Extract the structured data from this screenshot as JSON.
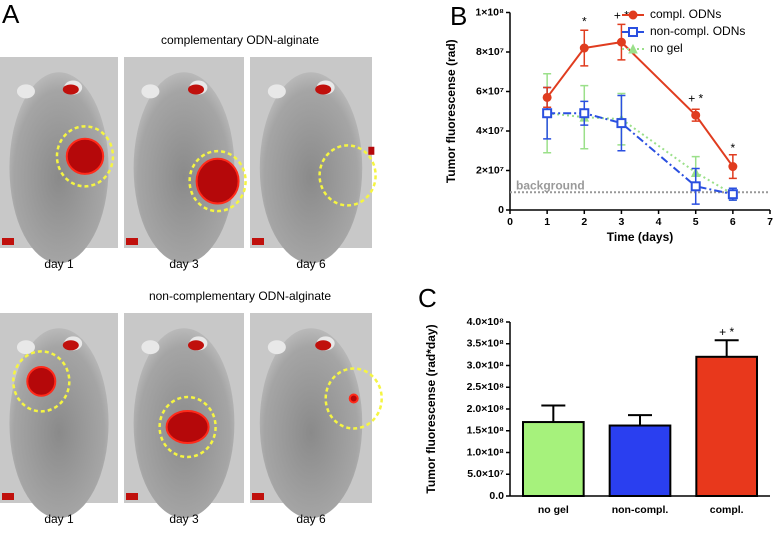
{
  "panel_a": {
    "letter": "A",
    "groups": [
      {
        "title": "complementary ODN-alginate",
        "days": [
          "day 1",
          "day 3",
          "day 6"
        ]
      },
      {
        "title": "non-complementary ODN-alginate",
        "days": [
          "day 1",
          "day 3",
          "day 6"
        ]
      }
    ]
  },
  "chart_data": [
    {
      "type": "line",
      "panel_label": "B",
      "x_label": "Time (days)",
      "y_label": "Tumor fluorescense (rad)",
      "xlim": [
        0,
        7
      ],
      "xticks": [
        0,
        1,
        2,
        3,
        4,
        5,
        6,
        7
      ],
      "ylim": [
        0,
        100000000
      ],
      "yticks": [
        0,
        {
          "value": 20000000,
          "label": "2×10⁷"
        },
        {
          "value": 40000000,
          "label": "4×10⁷"
        },
        {
          "value": 60000000,
          "label": "6×10⁷"
        },
        {
          "value": 80000000,
          "label": "8×10⁷"
        },
        {
          "value": 100000000,
          "label": "1×10⁸"
        }
      ],
      "legend": "upper right",
      "background": {
        "label": "background",
        "value": 9000000
      },
      "series": [
        {
          "name": "compl. ODNs",
          "color": "#e03c1f",
          "marker": "circle",
          "dash": "solid",
          "x": [
            1,
            2,
            3,
            5,
            6
          ],
          "values": [
            57000000,
            82000000,
            85000000,
            48000000,
            22000000
          ],
          "errors": [
            5000000,
            9000000,
            9000000,
            3000000,
            6000000
          ]
        },
        {
          "name": "non-compl. ODNs",
          "color": "#2a4fe0",
          "marker": "square",
          "dash": "dashdot",
          "x": [
            1,
            2,
            3,
            5,
            6
          ],
          "values": [
            49000000,
            49000000,
            44000000,
            12000000,
            8000000
          ],
          "errors": [
            13000000,
            6000000,
            14000000,
            9000000,
            3000000
          ]
        },
        {
          "name": "no gel",
          "color": "#9be08a",
          "marker": "triangle",
          "dash": "dotted",
          "x": [
            1,
            2,
            3,
            5,
            6
          ],
          "values": [
            49000000,
            47000000,
            46000000,
            19000000,
            8000000
          ],
          "errors": [
            20000000,
            16000000,
            13000000,
            8000000,
            3000000
          ]
        }
      ],
      "annotations": [
        {
          "text": "*",
          "x": 2,
          "y": 95000000
        },
        {
          "text": "+ *",
          "x": 3,
          "y": 98000000
        },
        {
          "text": "+ *",
          "x": 5,
          "y": 56000000
        },
        {
          "text": "*",
          "x": 6,
          "y": 31000000
        }
      ]
    },
    {
      "type": "bar",
      "panel_label": "C",
      "y_label": "Tumor fluorescense (rad*day)",
      "categories": [
        "no gel",
        "non-compl.",
        "compl."
      ],
      "values": [
        170000000,
        162000000,
        320000000
      ],
      "errors": [
        38000000,
        24000000,
        38000000
      ],
      "colors": [
        "#a6f27c",
        "#2a3ff0",
        "#e8381c"
      ],
      "ylim": [
        0,
        400000000
      ],
      "yticks": [
        {
          "value": 0,
          "label": "0.0"
        },
        {
          "value": 50000000,
          "label": "5.0×10⁷"
        },
        {
          "value": 100000000,
          "label": "1.0×10⁸"
        },
        {
          "value": 150000000,
          "label": "1.5×10⁸"
        },
        {
          "value": 200000000,
          "label": "2.0×10⁸"
        },
        {
          "value": 250000000,
          "label": "2.5×10⁸"
        },
        {
          "value": 300000000,
          "label": "3.0×10⁸"
        },
        {
          "value": 350000000,
          "label": "3.5×10⁸"
        },
        {
          "value": 400000000,
          "label": "4.0×10⁸"
        }
      ],
      "annotations": [
        {
          "text": "+ *",
          "category": 2,
          "y": 375000000
        }
      ]
    }
  ]
}
